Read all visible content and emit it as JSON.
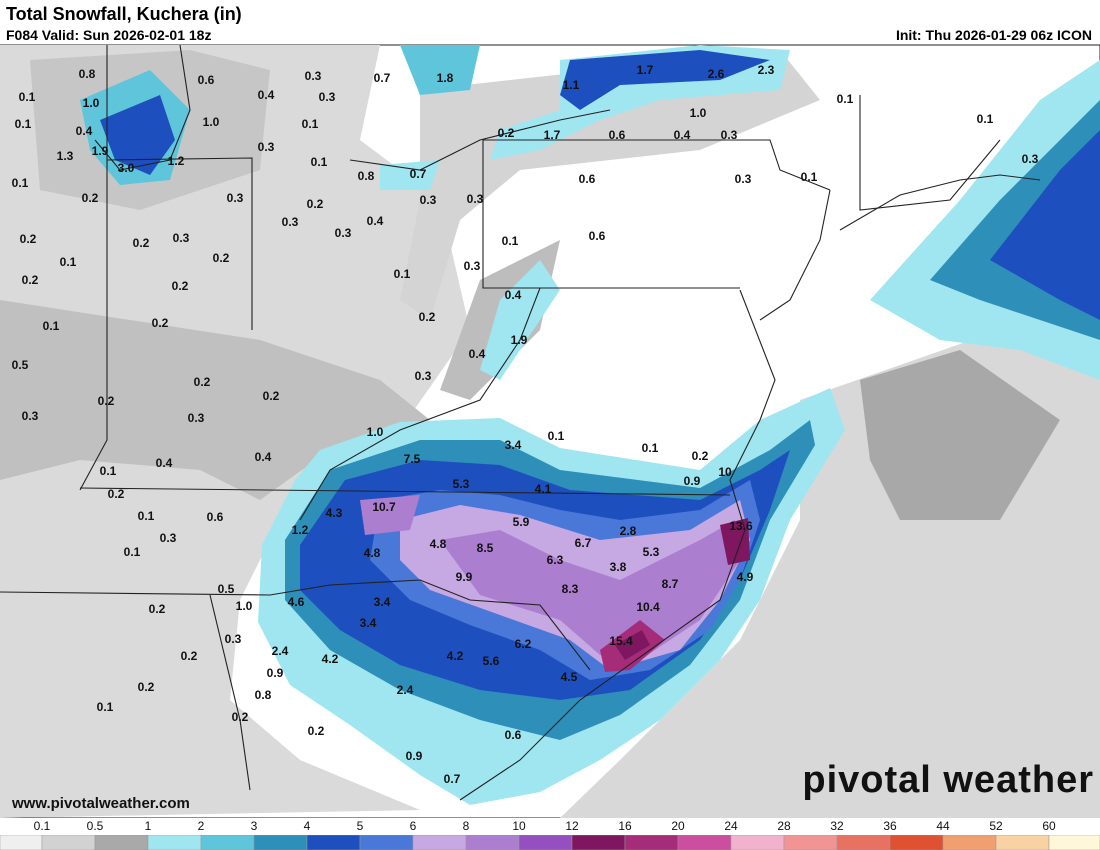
{
  "header": {
    "title": "Total Snowfall, Kuchera (in)",
    "valid": "F084 Valid: Sun 2026-02-01 18z",
    "init": "Init: Thu 2026-01-29 06z ICON"
  },
  "map": {
    "labels": [
      "0.8",
      "0.6",
      "0.3",
      "0.7",
      "1.8",
      "1.7",
      "2.6",
      "2.3",
      "0.1",
      "0.1",
      "1.0",
      "0.4",
      "0.3",
      "1.1",
      "1.0",
      "0.1",
      "0.4",
      "1.0",
      "0.1",
      "0.2",
      "1.7",
      "0.6",
      "0.4",
      "0.3",
      "0.1",
      "1.9",
      "0.3",
      "1.3",
      "3.0",
      "1.2",
      "0.1",
      "0.8",
      "0.7",
      "0.3",
      "0.1",
      "0.6",
      "0.3",
      "0.1",
      "0.2",
      "0.3",
      "0.2",
      "0.3",
      "0.3",
      "0.3",
      "0.4",
      "0.3",
      "0.2",
      "0.2",
      "0.3",
      "0.1",
      "0.6",
      "0.1",
      "0.2",
      "0.3",
      "0.2",
      "0.1",
      "0.2",
      "0.4",
      "0.1",
      "0.2",
      "0.2",
      "1.9",
      "0.4",
      "0.5",
      "0.3",
      "0.2",
      "0.2",
      "0.2",
      "0.3",
      "0.3",
      "1.0",
      "3.4",
      "0.1",
      "0.1",
      "0.4",
      "0.4",
      "7.5",
      "0.2",
      "0.1",
      "10",
      "5.3",
      "4.1",
      "0.9",
      "0.2",
      "0.1",
      "0.6",
      "4.3",
      "10.7",
      "5.9",
      "2.8",
      "13.6",
      "0.3",
      "1.2",
      "4.8",
      "8.5",
      "6.7",
      "0.1",
      "4.8",
      "5.3",
      "6.3",
      "3.8",
      "9.9",
      "8.7",
      "4.9",
      "0.5",
      "8.3",
      "4.6",
      "1.0",
      "3.4",
      "10.4",
      "0.2",
      "3.4",
      "0.3",
      "6.2",
      "15.4",
      "2.4",
      "0.2",
      "4.2",
      "4.2",
      "5.6",
      "0.9",
      "4.5",
      "0.2",
      "0.8",
      "2.4",
      "0.1",
      "0.2",
      "0.2",
      "0.6",
      "0.9",
      "0.7"
    ]
  },
  "footer": {
    "url": "www.pivotalweather.com",
    "brand": "pivotal weather"
  },
  "legend": {
    "ticks": [
      "0.1",
      "0.5",
      "1",
      "2",
      "3",
      "4",
      "5",
      "6",
      "8",
      "10",
      "12",
      "16",
      "20",
      "24",
      "28",
      "32",
      "36",
      "44",
      "52",
      "60"
    ],
    "colors": [
      "#efefef",
      "#d2d2d2",
      "#a9a9a9",
      "#9fe6f0",
      "#5ec5db",
      "#2e8fb8",
      "#1d4fbf",
      "#4a78d8",
      "#c6a8e2",
      "#ac7ed0",
      "#9450bf",
      "#7e1660",
      "#a42c78",
      "#cc4e9e",
      "#f0b2cc",
      "#f09494",
      "#e87262",
      "#de5232",
      "#f0a070",
      "#f8d2a2",
      "#fff8d8"
    ]
  }
}
